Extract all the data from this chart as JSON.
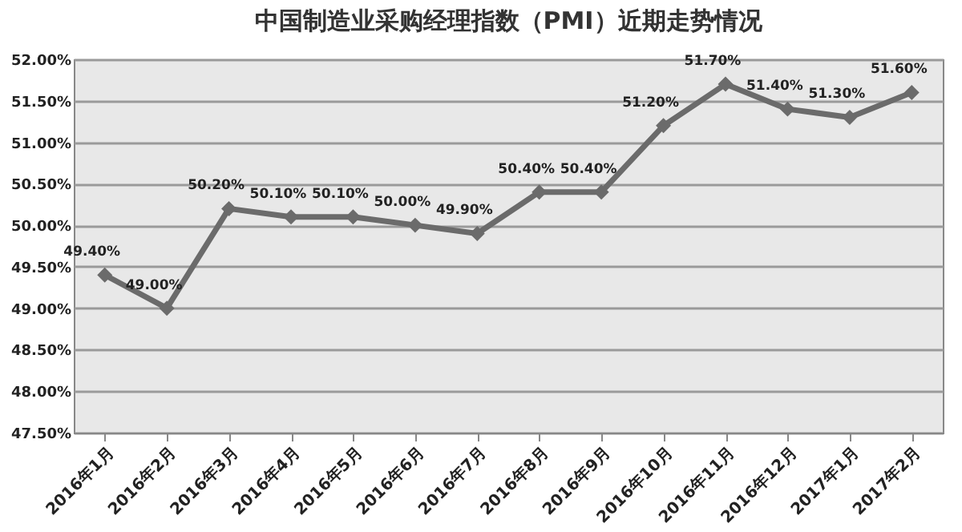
{
  "chart_data": {
    "type": "line",
    "title": "中国制造业采购经理指数（PMI）近期走势情况",
    "categories": [
      "2016年1月",
      "2016年2月",
      "2016年3月",
      "2016年4月",
      "2016年5月",
      "2016年6月",
      "2016年7月",
      "2016年8月",
      "2016年9月",
      "2016年10月",
      "2016年11月",
      "2016年12月",
      "2017年1月",
      "2017年2月"
    ],
    "series": [
      {
        "color": "#6b6b6b",
        "values": [
          49.4,
          49.0,
          50.2,
          50.1,
          50.1,
          50.0,
          49.9,
          50.4,
          50.4,
          51.2,
          51.7,
          51.4,
          51.3,
          51.6
        ],
        "value_labels": [
          "49.40%",
          "49.00%",
          "50.20%",
          "50.10%",
          "50.10%",
          "50.00%",
          "49.90%",
          "50.40%",
          "50.40%",
          "51.20%",
          "51.70%",
          "51.40%",
          "51.30%",
          "51.60%"
        ]
      }
    ],
    "ylim": [
      47.5,
      52.0
    ],
    "yticks": [
      {
        "value": 47.5,
        "label": "47.50%"
      },
      {
        "value": 48.0,
        "label": "48.00%"
      },
      {
        "value": 48.5,
        "label": "48.50%"
      },
      {
        "value": 49.0,
        "label": "49.00%"
      },
      {
        "value": 49.5,
        "label": "49.50%"
      },
      {
        "value": 50.0,
        "label": "50.00%"
      },
      {
        "value": 50.5,
        "label": "50.50%"
      },
      {
        "value": 51.0,
        "label": "51.00%"
      },
      {
        "value": 51.5,
        "label": "51.50%"
      },
      {
        "value": 52.0,
        "label": "52.00%"
      }
    ],
    "grid": "y",
    "marker": "diamond",
    "line_style": "solid"
  }
}
